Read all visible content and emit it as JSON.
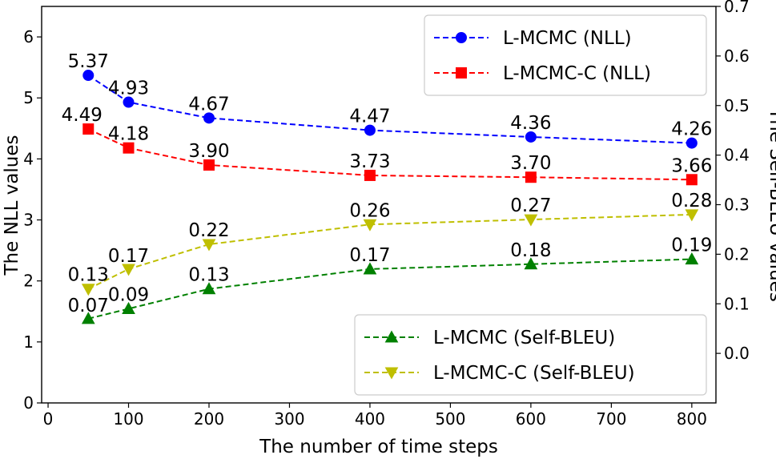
{
  "chart_data": {
    "type": "line",
    "x": [
      50,
      100,
      200,
      400,
      600,
      800
    ],
    "xlabel": "The number of time steps",
    "ylabel_left": "The NLL values",
    "ylabel_right": "The Self-BLEU values",
    "xlim": [
      -8,
      830
    ],
    "ylim_left": [
      0,
      6.5
    ],
    "ylim_right": [
      -0.1,
      0.7
    ],
    "xticks": [
      0,
      100,
      200,
      300,
      400,
      500,
      600,
      700,
      800
    ],
    "xtick_labels": [
      "0",
      "100",
      "200",
      "300",
      "400",
      "500",
      "600",
      "700",
      "800"
    ],
    "yticks_left": [
      0,
      1,
      2,
      3,
      4,
      5,
      6
    ],
    "ytick_labels_left": [
      "0",
      "1",
      "2",
      "3",
      "4",
      "5",
      "6"
    ],
    "yticks_right": [
      0.0,
      0.1,
      0.2,
      0.3,
      0.4,
      0.5,
      0.6,
      0.7
    ],
    "ytick_labels_right": [
      "0.0",
      "0.1",
      "0.2",
      "0.3",
      "0.4",
      "0.5",
      "0.6",
      "0.7"
    ],
    "series": [
      {
        "name": "L-MCMC (NLL)",
        "axis": "left",
        "marker": "circle",
        "color": "#0000ff",
        "values": [
          5.37,
          4.93,
          4.67,
          4.47,
          4.36,
          4.26
        ],
        "labels": [
          "5.37",
          "4.93",
          "4.67",
          "4.47",
          "4.36",
          "4.26"
        ]
      },
      {
        "name": "L-MCMC-C (NLL)",
        "axis": "left",
        "marker": "square",
        "color": "#ff0000",
        "values": [
          4.49,
          4.18,
          3.9,
          3.73,
          3.7,
          3.66
        ],
        "labels": [
          "4.49",
          "4.18",
          "3.90",
          "3.73",
          "3.70",
          "3.66"
        ]
      },
      {
        "name": "L-MCMC (Self-BLEU)",
        "axis": "right",
        "marker": "triangle-up",
        "color": "#008000",
        "values": [
          0.07,
          0.09,
          0.13,
          0.17,
          0.18,
          0.19
        ],
        "labels": [
          "0.07",
          "0.09",
          "0.13",
          "0.17",
          "0.18",
          "0.19"
        ]
      },
      {
        "name": "L-MCMC-C (Self-BLEU)",
        "axis": "right",
        "marker": "triangle-down",
        "color": "#bfbf00",
        "values": [
          0.13,
          0.17,
          0.22,
          0.26,
          0.27,
          0.28
        ],
        "labels": [
          "0.13",
          "0.17",
          "0.22",
          "0.26",
          "0.27",
          "0.28"
        ]
      }
    ],
    "legends": [
      {
        "position": "top-right",
        "entries": [
          "L-MCMC (NLL)",
          "L-MCMC-C (NLL)"
        ]
      },
      {
        "position": "bottom-right",
        "entries": [
          "L-MCMC (Self-BLEU)",
          "L-MCMC-C (Self-BLEU)"
        ]
      }
    ]
  }
}
